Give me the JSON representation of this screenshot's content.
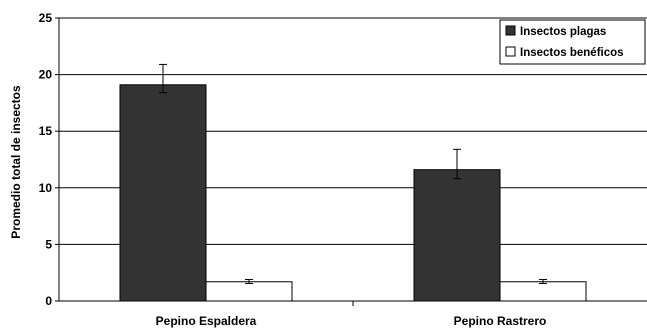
{
  "chart_data": {
    "type": "bar",
    "title": "",
    "xlabel": "",
    "ylabel": "Promedio total de insectos",
    "ylim": [
      0,
      25
    ],
    "yticks": [
      0,
      5,
      10,
      15,
      20,
      25
    ],
    "grid": true,
    "legend_position": "top-right",
    "categories": [
      "Pepino Espaldera",
      "Pepino Rastrero"
    ],
    "series": [
      {
        "name": "Insectos plagas",
        "color": "#333333",
        "values": [
          19.1,
          11.6
        ],
        "error_low": [
          18.4,
          10.8
        ],
        "error_high": [
          20.9,
          13.4
        ]
      },
      {
        "name": "Insectos benéficos",
        "color": "#ffffff",
        "values": [
          1.7,
          1.7
        ],
        "error_low": [
          1.55,
          1.55
        ],
        "error_high": [
          1.9,
          1.9
        ]
      }
    ]
  }
}
